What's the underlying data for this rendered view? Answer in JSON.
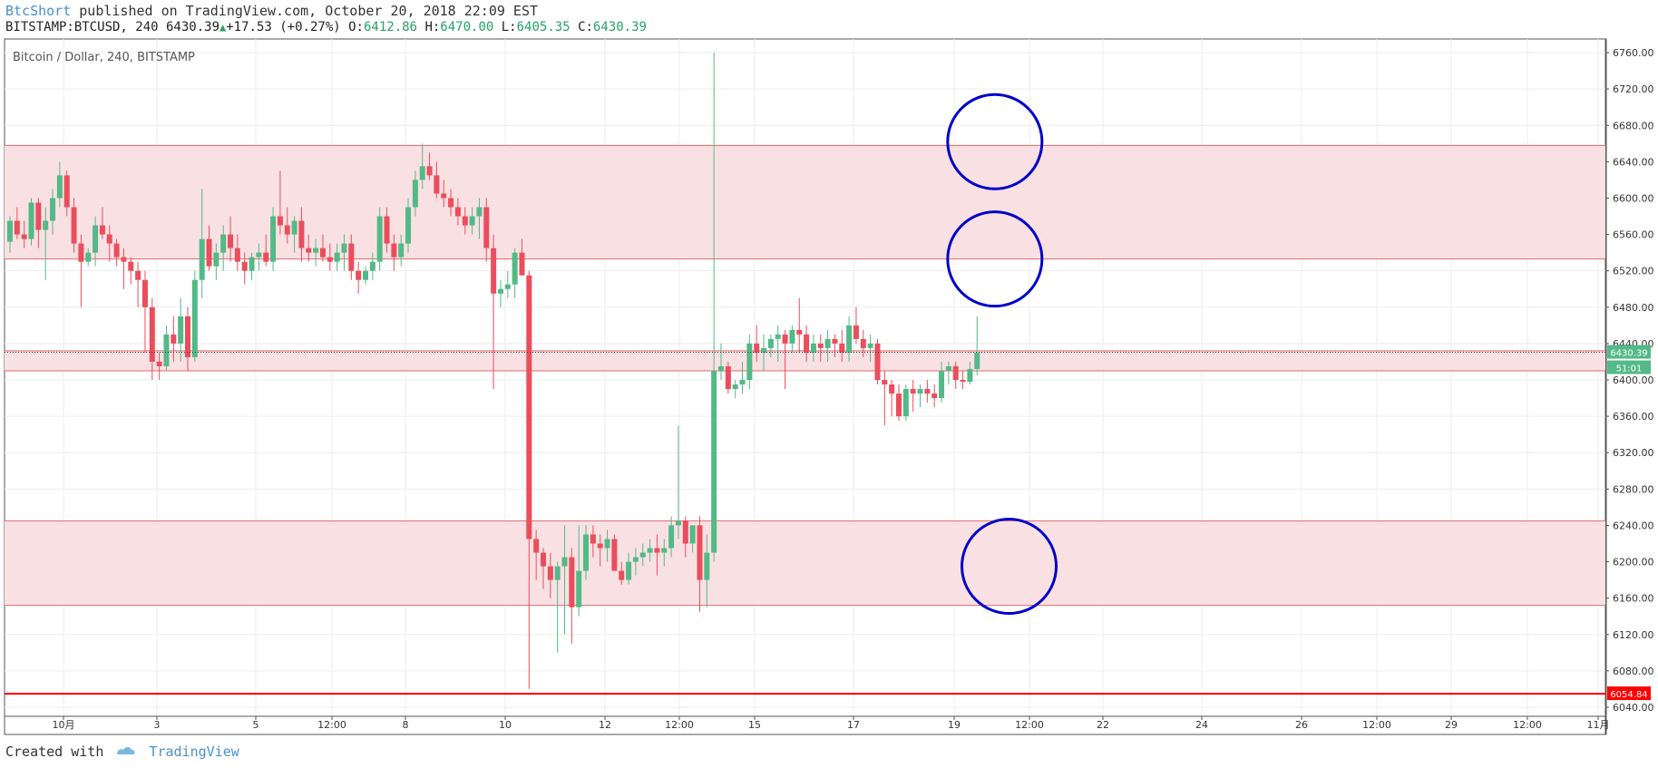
{
  "header": {
    "author": "BtcShort",
    "published_text": "published on TradingView.com, October 20, 2018 22:09 EST",
    "symbol_line": "BITSTAMP:BTCUSD, 240 6430.39",
    "change": "+17.53 (+0.27%)",
    "o_label": "O:",
    "o_value": "6412.86",
    "h_label": "H:",
    "h_value": "6470.00",
    "l_label": "L:",
    "l_value": "6405.35",
    "c_label": "C:",
    "c_value": "6430.39"
  },
  "footer": {
    "created_with": "Created with",
    "brand": "TradingView"
  },
  "colors": {
    "up": "#53b987",
    "down": "#eb4d5c",
    "zone_fill": "#f9e1e3",
    "zone_line": "#e06b6b",
    "support_line": "#ff0000",
    "circle": "#0000cc",
    "grid": "#eeeeee"
  },
  "chart_data": {
    "type": "candlestick",
    "title": "Bitcoin / Dollar, 240, BITSTAMP",
    "ylim": [
      6030,
      6775
    ],
    "y_ticks": [
      "6760.00",
      "6720.00",
      "6680.00",
      "6640.00",
      "6600.00",
      "6560.00",
      "6520.00",
      "6480.00",
      "6440.00",
      "6400.00",
      "6360.00",
      "6320.00",
      "6280.00",
      "6240.00",
      "6200.00",
      "6160.00",
      "6120.00",
      "6080.00",
      "6040.00"
    ],
    "x_ticks": [
      "10月",
      "3",
      "5",
      "12:00",
      "8",
      "10",
      "12",
      "12:00",
      "15",
      "17",
      "19",
      "12:00",
      "22",
      "24",
      "26",
      "12:00",
      "29",
      "12:00",
      "11月"
    ],
    "price_label": "6430.39",
    "countdown_label": "51:01",
    "support_label": "6054.84",
    "support_level": 6054.84,
    "current_price": 6430.39,
    "zones": [
      {
        "low": 6533,
        "high": 6658
      },
      {
        "low": 6410,
        "high": 6432
      },
      {
        "low": 6152,
        "high": 6245
      }
    ],
    "annotations": [
      {
        "shape": "circle",
        "x_index": 138.5,
        "y": 6662
      },
      {
        "shape": "circle",
        "x_index": 138.5,
        "y": 6533
      },
      {
        "shape": "circle",
        "x_index": 140.5,
        "y": 6195
      }
    ],
    "candles": [
      [
        6552,
        6580,
        6540,
        6575
      ],
      [
        6575,
        6590,
        6555,
        6560
      ],
      [
        6560,
        6575,
        6545,
        6555
      ],
      [
        6555,
        6600,
        6548,
        6595
      ],
      [
        6595,
        6600,
        6545,
        6565
      ],
      [
        6565,
        6590,
        6510,
        6575
      ],
      [
        6575,
        6610,
        6560,
        6600
      ],
      [
        6600,
        6640,
        6590,
        6625
      ],
      [
        6625,
        6630,
        6580,
        6590
      ],
      [
        6590,
        6600,
        6540,
        6550
      ],
      [
        6550,
        6560,
        6480,
        6530
      ],
      [
        6530,
        6545,
        6525,
        6540
      ],
      [
        6540,
        6580,
        6525,
        6570
      ],
      [
        6570,
        6590,
        6555,
        6560
      ],
      [
        6560,
        6570,
        6530,
        6550
      ],
      [
        6550,
        6555,
        6525,
        6535
      ],
      [
        6535,
        6545,
        6500,
        6530
      ],
      [
        6530,
        6535,
        6505,
        6520
      ],
      [
        6520,
        6530,
        6480,
        6510
      ],
      [
        6510,
        6520,
        6430,
        6480
      ],
      [
        6480,
        6490,
        6400,
        6420
      ],
      [
        6420,
        6430,
        6400,
        6415
      ],
      [
        6415,
        6460,
        6410,
        6450
      ],
      [
        6450,
        6470,
        6420,
        6440
      ],
      [
        6440,
        6490,
        6420,
        6470
      ],
      [
        6470,
        6480,
        6410,
        6425
      ],
      [
        6425,
        6520,
        6420,
        6510
      ],
      [
        6510,
        6610,
        6490,
        6555
      ],
      [
        6555,
        6570,
        6520,
        6525
      ],
      [
        6525,
        6550,
        6510,
        6540
      ],
      [
        6540,
        6570,
        6520,
        6560
      ],
      [
        6560,
        6580,
        6530,
        6545
      ],
      [
        6545,
        6560,
        6520,
        6530
      ],
      [
        6530,
        6540,
        6505,
        6520
      ],
      [
        6520,
        6540,
        6510,
        6535
      ],
      [
        6535,
        6550,
        6520,
        6540
      ],
      [
        6540,
        6560,
        6525,
        6530
      ],
      [
        6530,
        6590,
        6520,
        6580
      ],
      [
        6580,
        6630,
        6560,
        6570
      ],
      [
        6570,
        6590,
        6550,
        6560
      ],
      [
        6560,
        6580,
        6540,
        6575
      ],
      [
        6575,
        6590,
        6530,
        6545
      ],
      [
        6545,
        6560,
        6530,
        6540
      ],
      [
        6540,
        6555,
        6525,
        6545
      ],
      [
        6545,
        6560,
        6530,
        6535
      ],
      [
        6535,
        6550,
        6520,
        6530
      ],
      [
        6530,
        6550,
        6520,
        6540
      ],
      [
        6540,
        6560,
        6520,
        6550
      ],
      [
        6550,
        6560,
        6510,
        6520
      ],
      [
        6520,
        6530,
        6495,
        6510
      ],
      [
        6510,
        6525,
        6505,
        6520
      ],
      [
        6520,
        6540,
        6510,
        6530
      ],
      [
        6530,
        6590,
        6520,
        6580
      ],
      [
        6580,
        6590,
        6540,
        6550
      ],
      [
        6550,
        6560,
        6520,
        6535
      ],
      [
        6535,
        6560,
        6525,
        6550
      ],
      [
        6550,
        6600,
        6540,
        6590
      ],
      [
        6590,
        6630,
        6580,
        6620
      ],
      [
        6620,
        6660,
        6610,
        6635
      ],
      [
        6635,
        6650,
        6620,
        6625
      ],
      [
        6625,
        6640,
        6600,
        6605
      ],
      [
        6605,
        6620,
        6590,
        6600
      ],
      [
        6600,
        6610,
        6580,
        6590
      ],
      [
        6590,
        6600,
        6570,
        6580
      ],
      [
        6580,
        6590,
        6560,
        6570
      ],
      [
        6570,
        6590,
        6560,
        6580
      ],
      [
        6580,
        6600,
        6555,
        6590
      ],
      [
        6590,
        6600,
        6530,
        6545
      ],
      [
        6545,
        6560,
        6390,
        6495
      ],
      [
        6495,
        6510,
        6480,
        6500
      ],
      [
        6500,
        6520,
        6490,
        6505
      ],
      [
        6505,
        6545,
        6490,
        6540
      ],
      [
        6540,
        6555,
        6515,
        6515
      ],
      [
        6515,
        6520,
        6060,
        6225
      ],
      [
        6225,
        6235,
        6180,
        6210
      ],
      [
        6210,
        6215,
        6170,
        6195
      ],
      [
        6195,
        6210,
        6160,
        6180
      ],
      [
        6180,
        6200,
        6100,
        6195
      ],
      [
        6195,
        6240,
        6120,
        6205
      ],
      [
        6205,
        6215,
        6110,
        6150
      ],
      [
        6150,
        6240,
        6140,
        6190
      ],
      [
        6190,
        6240,
        6180,
        6230
      ],
      [
        6230,
        6240,
        6205,
        6220
      ],
      [
        6220,
        6230,
        6195,
        6215
      ],
      [
        6215,
        6235,
        6200,
        6225
      ],
      [
        6225,
        6230,
        6190,
        6190
      ],
      [
        6190,
        6200,
        6175,
        6180
      ],
      [
        6180,
        6210,
        6175,
        6200
      ],
      [
        6200,
        6215,
        6185,
        6205
      ],
      [
        6205,
        6220,
        6195,
        6210
      ],
      [
        6210,
        6225,
        6200,
        6215
      ],
      [
        6215,
        6230,
        6185,
        6210
      ],
      [
        6210,
        6225,
        6195,
        6215
      ],
      [
        6215,
        6250,
        6205,
        6240
      ],
      [
        6240,
        6350,
        6225,
        6245
      ],
      [
        6245,
        6250,
        6205,
        6220
      ],
      [
        6220,
        6240,
        6210,
        6240
      ],
      [
        6240,
        6250,
        6145,
        6180
      ],
      [
        6180,
        6230,
        6150,
        6210
      ],
      [
        6210,
        6760,
        6200,
        6410
      ],
      [
        6410,
        6440,
        6400,
        6415
      ],
      [
        6415,
        6420,
        6385,
        6390
      ],
      [
        6390,
        6400,
        6380,
        6395
      ],
      [
        6395,
        6420,
        6385,
        6400
      ],
      [
        6400,
        6450,
        6390,
        6440
      ],
      [
        6440,
        6460,
        6420,
        6430
      ],
      [
        6430,
        6450,
        6410,
        6435
      ],
      [
        6435,
        6450,
        6425,
        6445
      ],
      [
        6445,
        6460,
        6420,
        6450
      ],
      [
        6450,
        6455,
        6390,
        6440
      ],
      [
        6440,
        6460,
        6430,
        6455
      ],
      [
        6455,
        6490,
        6430,
        6450
      ],
      [
        6450,
        6460,
        6420,
        6430
      ],
      [
        6430,
        6450,
        6420,
        6440
      ],
      [
        6440,
        6450,
        6420,
        6435
      ],
      [
        6435,
        6455,
        6420,
        6445
      ],
      [
        6445,
        6450,
        6425,
        6440
      ],
      [
        6440,
        6455,
        6420,
        6430
      ],
      [
        6430,
        6470,
        6420,
        6460
      ],
      [
        6460,
        6480,
        6440,
        6445
      ],
      [
        6445,
        6455,
        6425,
        6435
      ],
      [
        6435,
        6450,
        6420,
        6440
      ],
      [
        6440,
        6445,
        6395,
        6400
      ],
      [
        6400,
        6410,
        6350,
        6395
      ],
      [
        6395,
        6400,
        6360,
        6385
      ],
      [
        6385,
        6395,
        6355,
        6360
      ],
      [
        6360,
        6395,
        6355,
        6390
      ],
      [
        6390,
        6400,
        6365,
        6385
      ],
      [
        6385,
        6395,
        6370,
        6390
      ],
      [
        6390,
        6400,
        6375,
        6385
      ],
      [
        6385,
        6395,
        6370,
        6380
      ],
      [
        6380,
        6420,
        6375,
        6410
      ],
      [
        6410,
        6420,
        6395,
        6415
      ],
      [
        6415,
        6420,
        6390,
        6400
      ],
      [
        6400,
        6410,
        6390,
        6398
      ],
      [
        6398,
        6420,
        6395,
        6412
      ],
      [
        6412,
        6470,
        6405,
        6430
      ]
    ]
  }
}
